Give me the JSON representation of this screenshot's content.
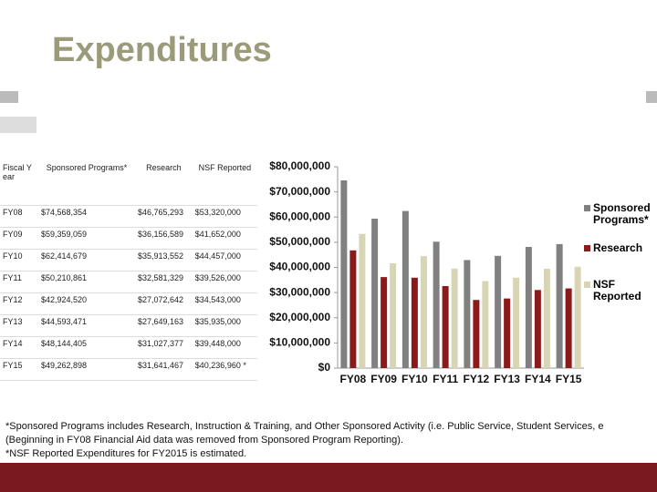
{
  "header": {
    "title": "Expenditures"
  },
  "table": {
    "columns": [
      "Fiscal Year",
      "Sponsored Programs*",
      "Research",
      "NSF Reported"
    ],
    "rows": [
      [
        "FY08",
        "$74,568,354",
        "$46,765,293",
        "$53,320,000"
      ],
      [
        "FY09",
        "$59,359,059",
        "$36,156,589",
        "$41,652,000"
      ],
      [
        "FY10",
        "$62,414,679",
        "$35,913,552",
        "$44,457,000"
      ],
      [
        "FY11",
        "$50,210,861",
        "$32,581,329",
        "$39,526,000"
      ],
      [
        "FY12",
        "$42,924,520",
        "$27,072,642",
        "$34,543,000"
      ],
      [
        "FY13",
        "$44,593,471",
        "$27,649,163",
        "$35,935,000"
      ],
      [
        "FY14",
        "$48,144,405",
        "$31,027,377",
        "$39,448,000"
      ],
      [
        "FY15",
        "$49,262,898",
        "$31,641,467",
        "$40,236,960 *"
      ]
    ]
  },
  "chart_data": {
    "type": "bar",
    "categories": [
      "FY08",
      "FY09",
      "FY10",
      "FY11",
      "FY12",
      "FY13",
      "FY14",
      "FY15"
    ],
    "series": [
      {
        "name": "Sponsored Programs*",
        "color": "#808080",
        "values": [
          74568354,
          59359059,
          62414679,
          50210861,
          42924520,
          44593471,
          48144405,
          49262898
        ]
      },
      {
        "name": "Research",
        "color": "#8b1a1a",
        "values": [
          46765293,
          36156589,
          35913552,
          32581329,
          27072642,
          27649163,
          31027377,
          31641467
        ]
      },
      {
        "name": "NSF Reported",
        "color": "#d8d5b5",
        "values": [
          53320000,
          41652000,
          44457000,
          39526000,
          34543000,
          35935000,
          39448000,
          40236960
        ]
      }
    ],
    "ylim": [
      0,
      80000000
    ],
    "yticks": [
      {
        "value": 0,
        "label": "$0"
      },
      {
        "value": 10000000,
        "label": "$10,000,000"
      },
      {
        "value": 20000000,
        "label": "$20,000,000"
      },
      {
        "value": 30000000,
        "label": "$30,000,000"
      },
      {
        "value": 40000000,
        "label": "$40,000,000"
      },
      {
        "value": 50000000,
        "label": "$50,000,000"
      },
      {
        "value": 60000000,
        "label": "$60,000,000"
      },
      {
        "value": 70000000,
        "label": "$70,000,000"
      },
      {
        "value": 80000000,
        "label": "$80,000,000"
      }
    ],
    "grid": false,
    "legend": "right"
  },
  "footnotes": [
    "*Sponsored Programs includes Research, Instruction & Training, and Other Sponsored Activity (i.e. Public Service, Student Services, e",
    "(Beginning in FY08 Financial Aid data was removed from Sponsored Program Reporting).",
    "*NSF Reported Expenditures for FY2015 is estimated."
  ]
}
